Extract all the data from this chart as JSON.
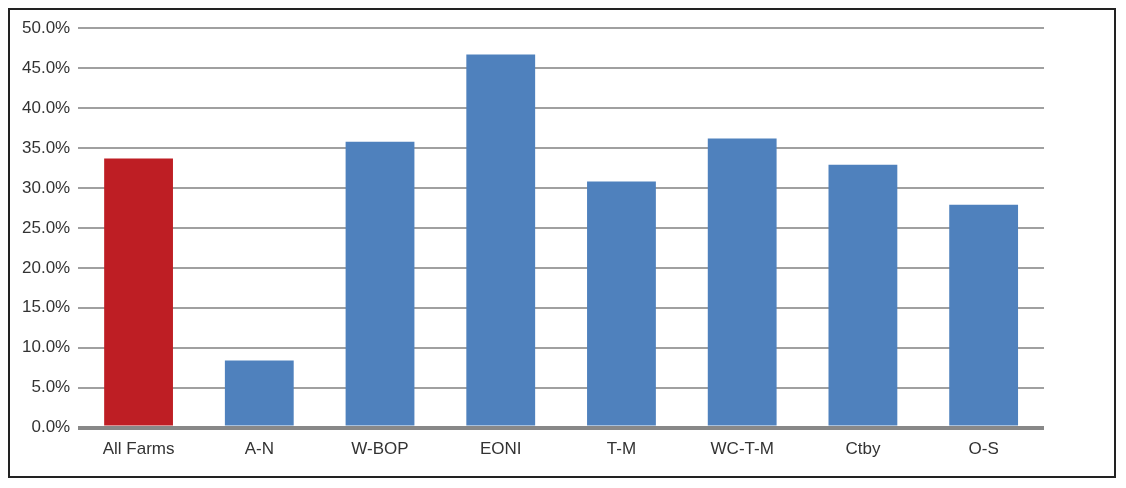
{
  "chart_data": {
    "type": "bar",
    "categories": [
      "All Farms",
      "A-N",
      "W-BOP",
      "EONI",
      "T-M",
      "WC-T-M",
      "Ctby",
      "O-S"
    ],
    "values": [
      33.7,
      8.4,
      35.8,
      46.7,
      30.8,
      36.2,
      32.9,
      27.9
    ],
    "colors": [
      "#be1e24",
      "#4f81bd",
      "#4f81bd",
      "#4f81bd",
      "#4f81bd",
      "#4f81bd",
      "#4f81bd",
      "#4f81bd"
    ],
    "ylim": [
      0,
      50
    ],
    "yticks": [
      {
        "value": 0,
        "label": "0.0%"
      },
      {
        "value": 5,
        "label": "5.0%"
      },
      {
        "value": 10,
        "label": "10.0%"
      },
      {
        "value": 15,
        "label": "15.0%"
      },
      {
        "value": 20,
        "label": "20.0%"
      },
      {
        "value": 25,
        "label": "25.0%"
      },
      {
        "value": 30,
        "label": "30.0%"
      },
      {
        "value": 35,
        "label": "35.0%"
      },
      {
        "value": 40,
        "label": "40.0%"
      },
      {
        "value": 45,
        "label": "45.0%"
      },
      {
        "value": 50,
        "label": "50.0%"
      }
    ],
    "grid": "y",
    "legend": false
  }
}
